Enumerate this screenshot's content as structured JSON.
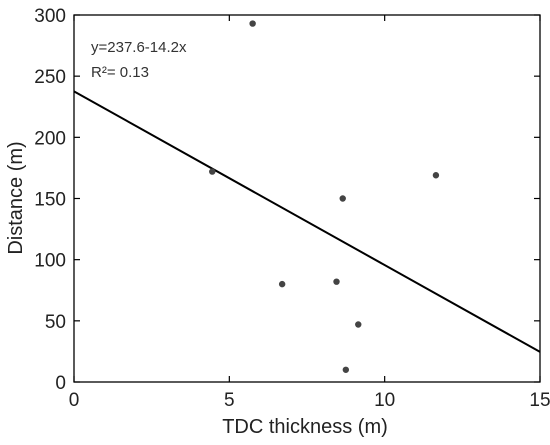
{
  "chart_data": {
    "type": "scatter",
    "title": "",
    "xlabel": "TDC thickness (m)",
    "ylabel": "Distance (m)",
    "xlim": [
      0,
      15
    ],
    "ylim": [
      0,
      300
    ],
    "xticks": [
      0,
      5,
      10,
      15
    ],
    "yticks": [
      0,
      50,
      100,
      150,
      200,
      250,
      300
    ],
    "grid": false,
    "legend": "none",
    "series": [
      {
        "points": [
          {
            "x": 4.45,
            "y": 172
          },
          {
            "x": 5.75,
            "y": 293
          },
          {
            "x": 6.7,
            "y": 80
          },
          {
            "x": 8.45,
            "y": 82
          },
          {
            "x": 8.65,
            "y": 150
          },
          {
            "x": 8.75,
            "y": 10
          },
          {
            "x": 9.15,
            "y": 47
          },
          {
            "x": 11.65,
            "y": 169
          }
        ],
        "marker_color": "#444444"
      }
    ],
    "fit_line": {
      "intercept": 237.6,
      "slope": -14.2,
      "color": "#000000"
    },
    "annotations": {
      "equation": "y=237.6-14.2x",
      "r_squared": "R²= 0.13"
    }
  }
}
